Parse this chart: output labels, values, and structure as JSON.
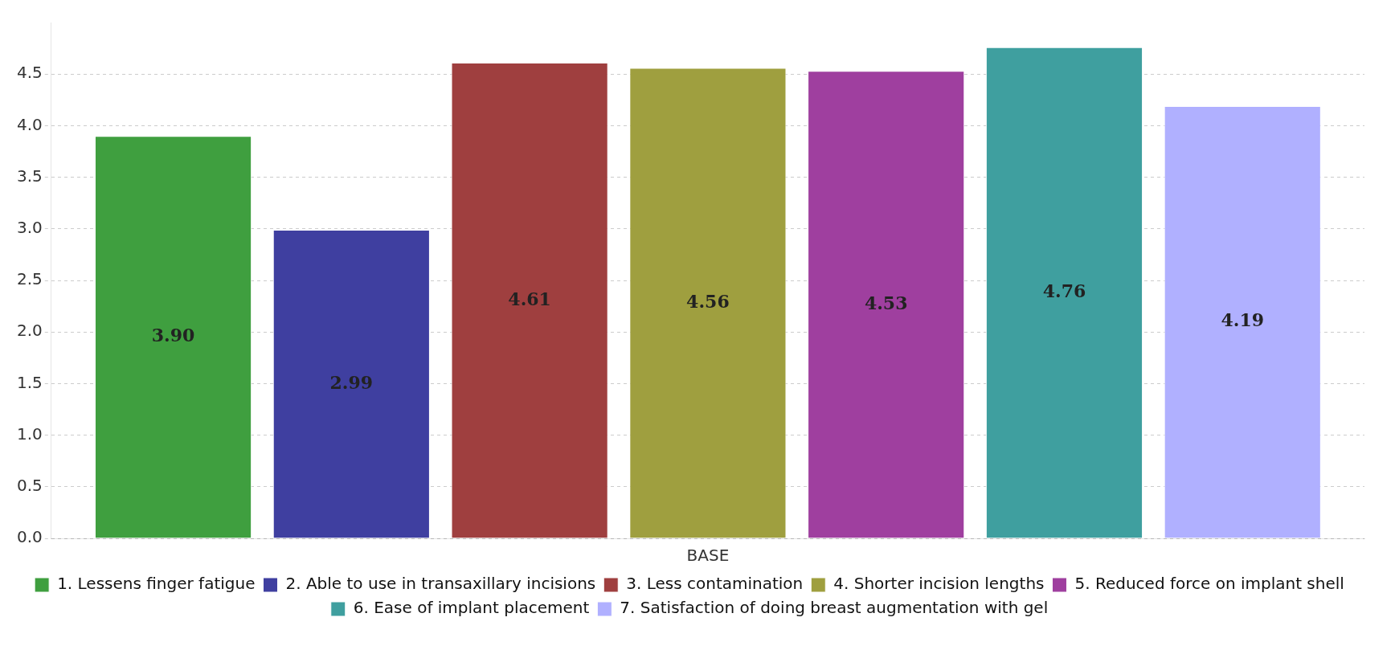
{
  "chart_data": {
    "type": "bar",
    "categories": [
      "BASE"
    ],
    "series": [
      {
        "name": "1. Lessens finger fatigue",
        "color": "#3f9f3f",
        "values": [
          3.9
        ],
        "value_labels": [
          "3.90"
        ]
      },
      {
        "name": "2. Able to use in transaxillary incisions",
        "color": "#3f3fa0",
        "values": [
          2.99
        ],
        "value_labels": [
          "2.99"
        ]
      },
      {
        "name": "3. Less contamination",
        "color": "#9f3f3f",
        "values": [
          4.61
        ],
        "value_labels": [
          "4.61"
        ]
      },
      {
        "name": "4. Shorter incision lengths",
        "color": "#9f9f3f",
        "values": [
          4.56
        ],
        "value_labels": [
          "4.56"
        ]
      },
      {
        "name": "5. Reduced force on implant shell",
        "color": "#9f3f9f",
        "values": [
          4.53
        ],
        "value_labels": [
          "4.53"
        ]
      },
      {
        "name": "6. Ease of implant placement",
        "color": "#3f9f9f",
        "values": [
          4.76
        ],
        "value_labels": [
          "4.76"
        ]
      },
      {
        "name": "7. Satisfaction of doing breast augmentation with gel",
        "color": "#b0b0ff",
        "values": [
          4.19
        ],
        "value_labels": [
          "4.19"
        ]
      }
    ],
    "ylim": [
      0,
      5.0
    ],
    "yticks": [
      {
        "value": 0,
        "label": "0.0"
      },
      0.5,
      {
        "value": 1,
        "label": "1.0"
      },
      1.5,
      {
        "value": 2,
        "label": "2.0"
      },
      2.5,
      {
        "value": 3,
        "label": "3.0"
      },
      3.5,
      {
        "value": 4,
        "label": "4.0"
      },
      4.5
    ],
    "grid": "y",
    "legend": "bottom"
  }
}
